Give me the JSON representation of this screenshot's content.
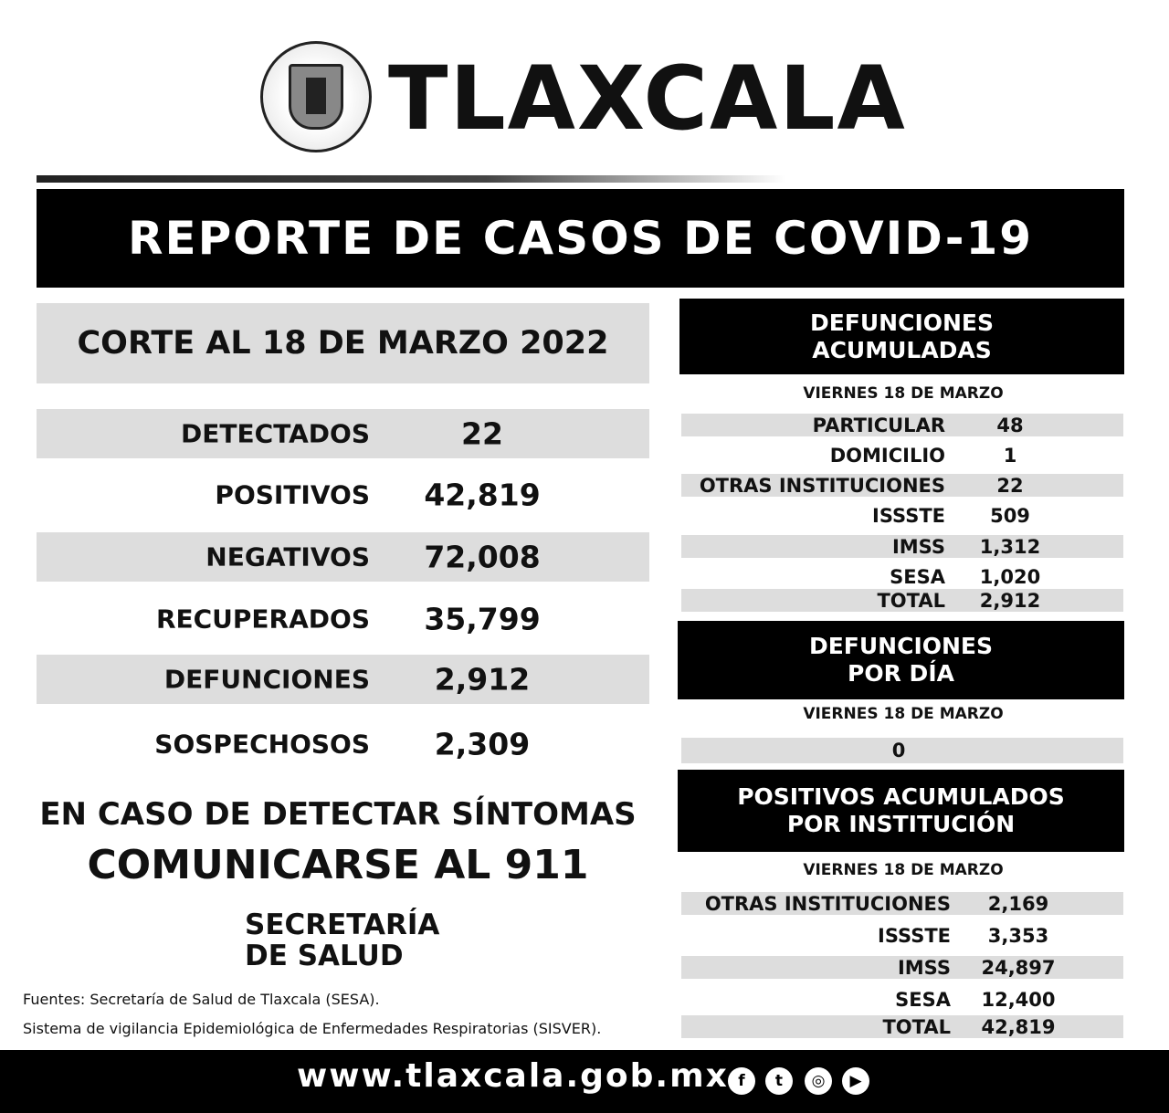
{
  "header": {
    "title": "TLAXCALA",
    "logo_icon": "coat-of-arms-icon"
  },
  "banner": "REPORTE DE CASOS DE COVID-19",
  "corte": "CORTE AL 18 DE MARZO 2022",
  "stats": [
    {
      "label": "DETECTADOS",
      "value": "22"
    },
    {
      "label": "POSITIVOS",
      "value": "42,819"
    },
    {
      "label": "NEGATIVOS",
      "value": "72,008"
    },
    {
      "label": "RECUPERADOS",
      "value": "35,799"
    },
    {
      "label": "DEFUNCIONES",
      "value": "2,912"
    },
    {
      "label": "SOSPECHOSOS",
      "value": "2,309"
    }
  ],
  "notice": {
    "line1": "EN CASO DE DETECTAR SÍNTOMAS",
    "line2": "COMUNICARSE AL 911"
  },
  "secretaria": {
    "line1": "SECRETARÍA",
    "line2": "DE SALUD"
  },
  "sources": [
    "Fuentes:  Secretaría de Salud de Tlaxcala (SESA).",
    "Sistema de vigilancia Epidemiológica de Enfermedades Respiratorias (SISVER)."
  ],
  "defunciones_acumuladas": {
    "title1": "DEFUNCIONES",
    "title2": "ACUMULADAS",
    "date": "VIERNES 18 DE MARZO",
    "rows": [
      {
        "label": "PARTICULAR",
        "value": "48"
      },
      {
        "label": "DOMICILIO",
        "value": "1"
      },
      {
        "label": "OTRAS INSTITUCIONES",
        "value": "22"
      },
      {
        "label": "ISSSTE",
        "value": "509"
      },
      {
        "label": "IMSS",
        "value": "1,312"
      },
      {
        "label": "SESA",
        "value": "1,020"
      },
      {
        "label": "TOTAL",
        "value": "2,912"
      }
    ]
  },
  "defunciones_dia": {
    "title1": "DEFUNCIONES",
    "title2": "POR DÍA",
    "date": "VIERNES 18 DE MARZO",
    "value": "0"
  },
  "positivos_institucion": {
    "title1": "POSITIVOS ACUMULADOS",
    "title2": "POR INSTITUCIÓN",
    "date": "VIERNES 18 DE MARZO",
    "rows": [
      {
        "label": "OTRAS INSTITUCIONES",
        "value": "2,169"
      },
      {
        "label": "ISSSTE",
        "value": "3,353"
      },
      {
        "label": "IMSS",
        "value": "24,897"
      },
      {
        "label": "SESA",
        "value": "12,400"
      },
      {
        "label": "TOTAL",
        "value": "42,819"
      }
    ]
  },
  "footer": {
    "url": "www.tlaxcala.gob.mx",
    "social": [
      {
        "icon": "facebook-icon",
        "glyph": "f"
      },
      {
        "icon": "twitter-icon",
        "glyph": "t"
      },
      {
        "icon": "instagram-icon",
        "glyph": "◎"
      },
      {
        "icon": "youtube-icon",
        "glyph": "▶"
      }
    ]
  }
}
